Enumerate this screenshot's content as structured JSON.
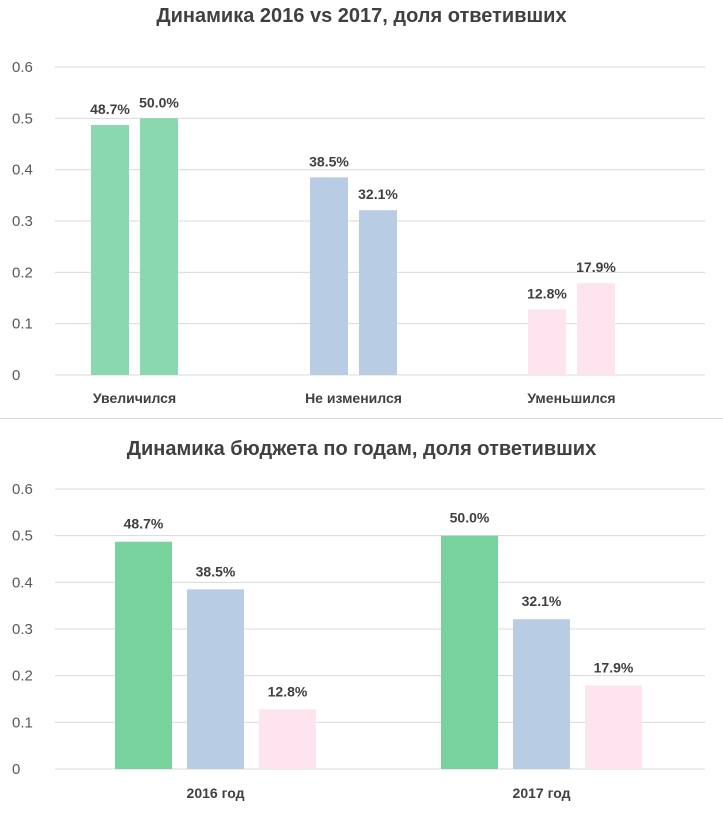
{
  "chart_data": [
    {
      "type": "bar",
      "title": "Динамика 2016 vs 2017, доля ответивших",
      "categories": [
        "Увеличился",
        "Не изменился",
        "Уменьшился"
      ],
      "bars_per_category": [
        {
          "labels": [
            "48.7%",
            "50.0%"
          ],
          "values": [
            0.487,
            0.5
          ],
          "color": "#8ad9ae"
        },
        {
          "labels": [
            "38.5%",
            "32.1%"
          ],
          "values": [
            0.385,
            0.321
          ],
          "color": "#b8cce4"
        },
        {
          "labels": [
            "12.8%",
            "17.9%"
          ],
          "values": [
            0.128,
            0.179
          ],
          "color": "#fde4ef"
        }
      ],
      "ylim": [
        0,
        0.6
      ],
      "yticks": [
        "0",
        "0.1",
        "0.2",
        "0.3",
        "0.4",
        "0.5",
        "0.6"
      ],
      "grid": true,
      "xlabel": "",
      "ylabel": ""
    },
    {
      "type": "bar",
      "title": "Динамика бюджета по годам, доля ответивших",
      "categories": [
        "2016 год",
        "2017 год"
      ],
      "bars_per_category": [
        {
          "labels": [
            "48.7%",
            "38.5%",
            "12.8%"
          ],
          "values": [
            0.487,
            0.385,
            0.128
          ],
          "colors": [
            "#78d29e",
            "#b8cce4",
            "#fde4ef"
          ]
        },
        {
          "labels": [
            "50.0%",
            "32.1%",
            "17.9%"
          ],
          "values": [
            0.5,
            0.321,
            0.179
          ],
          "colors": [
            "#78d29e",
            "#b8cce4",
            "#fde4ef"
          ]
        }
      ],
      "ylim": [
        0,
        0.6
      ],
      "yticks": [
        "0",
        "0.1",
        "0.2",
        "0.3",
        "0.4",
        "0.5",
        "0.6"
      ],
      "grid": true,
      "xlabel": "",
      "ylabel": ""
    }
  ]
}
